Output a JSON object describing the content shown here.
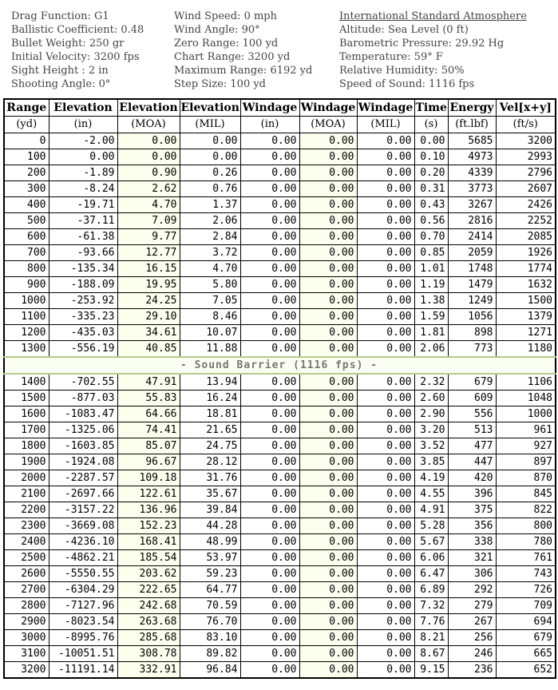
{
  "info": {
    "col1": [
      "Drag Function: G1",
      "Ballistic Coefficient: 0.48",
      "Bullet Weight: 250 gr",
      "Initial Velocity: 3200 fps",
      "Sight Height : 2 in",
      "Shooting Angle: 0°"
    ],
    "col2": [
      "Wind Speed: 0 mph",
      "Wind Angle: 90°",
      "Zero Range: 100 yd",
      "Chart Range: 3200 yd",
      "Maximum Range: 6192 yd",
      "Step Size: 100 yd"
    ],
    "col3_title": "International Standard Atmosphere",
    "col3": [
      "Altitude: Sea Level (0 ft)",
      "Barometric Pressure: 29.92 Hg",
      "Temperature: 59° F",
      "Relative Humidity: 50%",
      "Speed of Sound: 1116 fps"
    ]
  },
  "table": {
    "header_row1": [
      "Range",
      "Elevation",
      "Elevation",
      "Elevation",
      "Windage",
      "Windage",
      "Windage",
      "Time",
      "Energy",
      "Vel[x+y]"
    ],
    "header_row2": [
      "(yd)",
      "(in)",
      "(MOA)",
      "(MIL)",
      "(in)",
      "(MOA)",
      "(MIL)",
      "(s)",
      "(ft.lbf)",
      "(ft/s)"
    ],
    "divider_label": "- Sound Barrier (1116 fps) -",
    "divider_after_index": 13,
    "rows": [
      [
        "0",
        "-2.00",
        "0.00",
        "0.00",
        "0.00",
        "0.00",
        "0.00",
        "0.00",
        "5685",
        "3200"
      ],
      [
        "100",
        "0.00",
        "0.00",
        "0.00",
        "0.00",
        "0.00",
        "0.00",
        "0.10",
        "4973",
        "2993"
      ],
      [
        "200",
        "-1.89",
        "0.90",
        "0.26",
        "0.00",
        "0.00",
        "0.00",
        "0.20",
        "4339",
        "2796"
      ],
      [
        "300",
        "-8.24",
        "2.62",
        "0.76",
        "0.00",
        "0.00",
        "0.00",
        "0.31",
        "3773",
        "2607"
      ],
      [
        "400",
        "-19.71",
        "4.70",
        "1.37",
        "0.00",
        "0.00",
        "0.00",
        "0.43",
        "3267",
        "2426"
      ],
      [
        "500",
        "-37.11",
        "7.09",
        "2.06",
        "0.00",
        "0.00",
        "0.00",
        "0.56",
        "2816",
        "2252"
      ],
      [
        "600",
        "-61.38",
        "9.77",
        "2.84",
        "0.00",
        "0.00",
        "0.00",
        "0.70",
        "2414",
        "2085"
      ],
      [
        "700",
        "-93.66",
        "12.77",
        "3.72",
        "0.00",
        "0.00",
        "0.00",
        "0.85",
        "2059",
        "1926"
      ],
      [
        "800",
        "-135.34",
        "16.15",
        "4.70",
        "0.00",
        "0.00",
        "0.00",
        "1.01",
        "1748",
        "1774"
      ],
      [
        "900",
        "-188.09",
        "19.95",
        "5.80",
        "0.00",
        "0.00",
        "0.00",
        "1.19",
        "1479",
        "1632"
      ],
      [
        "1000",
        "-253.92",
        "24.25",
        "7.05",
        "0.00",
        "0.00",
        "0.00",
        "1.38",
        "1249",
        "1500"
      ],
      [
        "1100",
        "-335.23",
        "29.10",
        "8.46",
        "0.00",
        "0.00",
        "0.00",
        "1.59",
        "1056",
        "1379"
      ],
      [
        "1200",
        "-435.03",
        "34.61",
        "10.07",
        "0.00",
        "0.00",
        "0.00",
        "1.81",
        "898",
        "1271"
      ],
      [
        "1300",
        "-556.19",
        "40.85",
        "11.88",
        "0.00",
        "0.00",
        "0.00",
        "2.06",
        "773",
        "1180"
      ],
      [
        "1400",
        "-702.55",
        "47.91",
        "13.94",
        "0.00",
        "0.00",
        "0.00",
        "2.32",
        "679",
        "1106"
      ],
      [
        "1500",
        "-877.03",
        "55.83",
        "16.24",
        "0.00",
        "0.00",
        "0.00",
        "2.60",
        "609",
        "1048"
      ],
      [
        "1600",
        "-1083.47",
        "64.66",
        "18.81",
        "0.00",
        "0.00",
        "0.00",
        "2.90",
        "556",
        "1000"
      ],
      [
        "1700",
        "-1325.06",
        "74.41",
        "21.65",
        "0.00",
        "0.00",
        "0.00",
        "3.20",
        "513",
        "961"
      ],
      [
        "1800",
        "-1603.85",
        "85.07",
        "24.75",
        "0.00",
        "0.00",
        "0.00",
        "3.52",
        "477",
        "927"
      ],
      [
        "1900",
        "-1924.08",
        "96.67",
        "28.12",
        "0.00",
        "0.00",
        "0.00",
        "3.85",
        "447",
        "897"
      ],
      [
        "2000",
        "-2287.57",
        "109.18",
        "31.76",
        "0.00",
        "0.00",
        "0.00",
        "4.19",
        "420",
        "870"
      ],
      [
        "2100",
        "-2697.66",
        "122.61",
        "35.67",
        "0.00",
        "0.00",
        "0.00",
        "4.55",
        "396",
        "845"
      ],
      [
        "2200",
        "-3157.22",
        "136.96",
        "39.84",
        "0.00",
        "0.00",
        "0.00",
        "4.91",
        "375",
        "822"
      ],
      [
        "2300",
        "-3669.08",
        "152.23",
        "44.28",
        "0.00",
        "0.00",
        "0.00",
        "5.28",
        "356",
        "800"
      ],
      [
        "2400",
        "-4236.10",
        "168.41",
        "48.99",
        "0.00",
        "0.00",
        "0.00",
        "5.67",
        "338",
        "780"
      ],
      [
        "2500",
        "-4862.21",
        "185.54",
        "53.97",
        "0.00",
        "0.00",
        "0.00",
        "6.06",
        "321",
        "761"
      ],
      [
        "2600",
        "-5550.55",
        "203.62",
        "59.23",
        "0.00",
        "0.00",
        "0.00",
        "6.47",
        "306",
        "743"
      ],
      [
        "2700",
        "-6304.29",
        "222.65",
        "64.77",
        "0.00",
        "0.00",
        "0.00",
        "6.89",
        "292",
        "726"
      ],
      [
        "2800",
        "-7127.96",
        "242.68",
        "70.59",
        "0.00",
        "0.00",
        "0.00",
        "7.32",
        "279",
        "709"
      ],
      [
        "2900",
        "-8023.54",
        "263.68",
        "76.70",
        "0.00",
        "0.00",
        "0.00",
        "7.76",
        "267",
        "694"
      ],
      [
        "3000",
        "-8995.76",
        "285.68",
        "83.10",
        "0.00",
        "0.00",
        "0.00",
        "8.21",
        "256",
        "679"
      ],
      [
        "3100",
        "-10051.51",
        "308.78",
        "89.82",
        "0.00",
        "0.00",
        "0.00",
        "8.67",
        "246",
        "665"
      ],
      [
        "3200",
        "-11191.14",
        "332.91",
        "96.84",
        "0.00",
        "0.00",
        "0.00",
        "9.15",
        "236",
        "652"
      ]
    ]
  },
  "colors": {
    "moa_column_highlight": "#fcffee",
    "divider_border": "#b4cc8a",
    "divider_text": "#777777",
    "info_text": "#444444",
    "table_border": "#000000"
  }
}
